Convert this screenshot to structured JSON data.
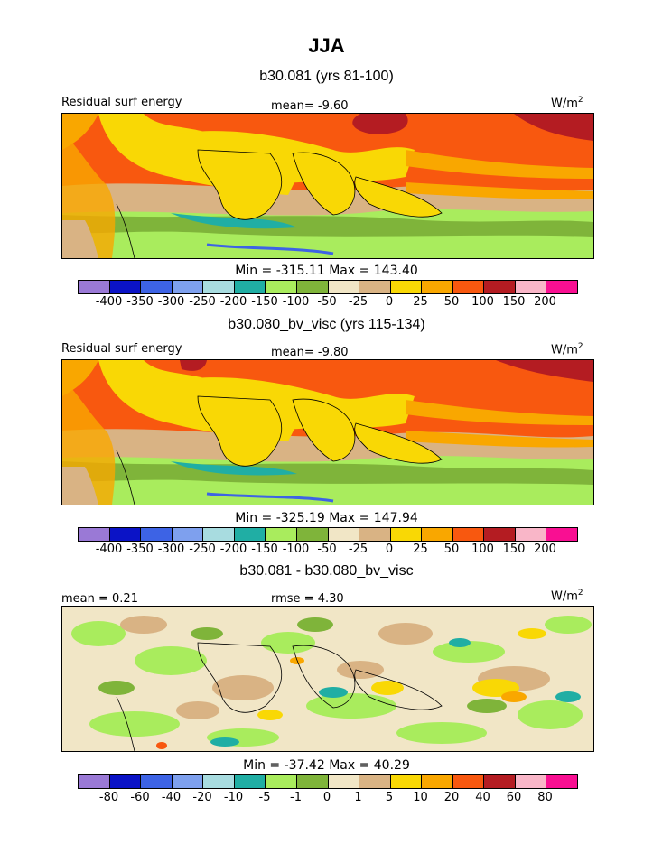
{
  "page": {
    "title": "JJA"
  },
  "panels": [
    {
      "subtitle": "b30.081 (yrs 81-100)",
      "left_label": "Residual surf energy",
      "center_label": "mean=   -9.60",
      "units": "W/m",
      "units_exp": "2",
      "minmax": "Min = -315.11 Max = 143.40",
      "tick_labels": [
        "-400",
        "-350",
        "-300",
        "-250",
        "-200",
        "-150",
        "-100",
        "-50",
        "-25",
        "0",
        "25",
        "50",
        "100",
        "150",
        "200"
      ],
      "colors": [
        "#9a79d6",
        "#0b13c6",
        "#3d63e5",
        "#7ea0ee",
        "#a8dce0",
        "#20aea4",
        "#a9ec5d",
        "#7fb43a",
        "#f1e6c6",
        "#d9b384",
        "#f9d805",
        "#f9a700",
        "#f8580f",
        "#b41c22",
        "#f9b6c8",
        "#f90f92"
      ]
    },
    {
      "subtitle": "b30.080_bv_visc (yrs 115-134)",
      "left_label": "Residual surf energy",
      "center_label": "mean=   -9.80",
      "units": "W/m",
      "units_exp": "2",
      "minmax": "Min = -325.19 Max = 147.94",
      "tick_labels": [
        "-400",
        "-350",
        "-300",
        "-250",
        "-200",
        "-150",
        "-100",
        "-50",
        "-25",
        "0",
        "25",
        "50",
        "100",
        "150",
        "200"
      ],
      "colors": [
        "#9a79d6",
        "#0b13c6",
        "#3d63e5",
        "#7ea0ee",
        "#a8dce0",
        "#20aea4",
        "#a9ec5d",
        "#7fb43a",
        "#f1e6c6",
        "#d9b384",
        "#f9d805",
        "#f9a700",
        "#f8580f",
        "#b41c22",
        "#f9b6c8",
        "#f90f92"
      ]
    },
    {
      "subtitle": "b30.081 - b30.080_bv_visc",
      "left_label": "mean =    0.21",
      "center_label": "rmse =    4.30",
      "units": "W/m",
      "units_exp": "2",
      "minmax": "Min = -37.42 Max =  40.29",
      "tick_labels": [
        "-80",
        "-60",
        "-40",
        "-20",
        "-10",
        "-5",
        "-1",
        "0",
        "1",
        "5",
        "10",
        "20",
        "40",
        "60",
        "80"
      ],
      "colors": [
        "#9a79d6",
        "#0b13c6",
        "#3d63e5",
        "#7ea0ee",
        "#a8dce0",
        "#20aea4",
        "#a9ec5d",
        "#7fb43a",
        "#f1e6c6",
        "#d9b384",
        "#f9d805",
        "#f9a700",
        "#f8580f",
        "#b41c22",
        "#f9b6c8",
        "#f90f92"
      ]
    }
  ],
  "chart_data": [
    {
      "type": "heatmap",
      "title": "b30.081 (yrs 81-100)",
      "variable": "Residual surf energy",
      "units": "W/m2",
      "mean": -9.6,
      "min": -315.11,
      "max": 143.4,
      "contour_levels": [
        -400,
        -350,
        -300,
        -250,
        -200,
        -150,
        -100,
        -50,
        -25,
        0,
        25,
        50,
        100,
        150,
        200
      ]
    },
    {
      "type": "heatmap",
      "title": "b30.080_bv_visc (yrs 115-134)",
      "variable": "Residual surf energy",
      "units": "W/m2",
      "mean": -9.8,
      "min": -325.19,
      "max": 147.94,
      "contour_levels": [
        -400,
        -350,
        -300,
        -250,
        -200,
        -150,
        -100,
        -50,
        -25,
        0,
        25,
        50,
        100,
        150,
        200
      ]
    },
    {
      "type": "heatmap",
      "title": "b30.081 - b30.080_bv_visc",
      "units": "W/m2",
      "mean": 0.21,
      "rmse": 4.3,
      "min": -37.42,
      "max": 40.29,
      "contour_levels": [
        -80,
        -60,
        -40,
        -20,
        -10,
        -5,
        -1,
        0,
        1,
        5,
        10,
        20,
        40,
        60,
        80
      ]
    }
  ]
}
